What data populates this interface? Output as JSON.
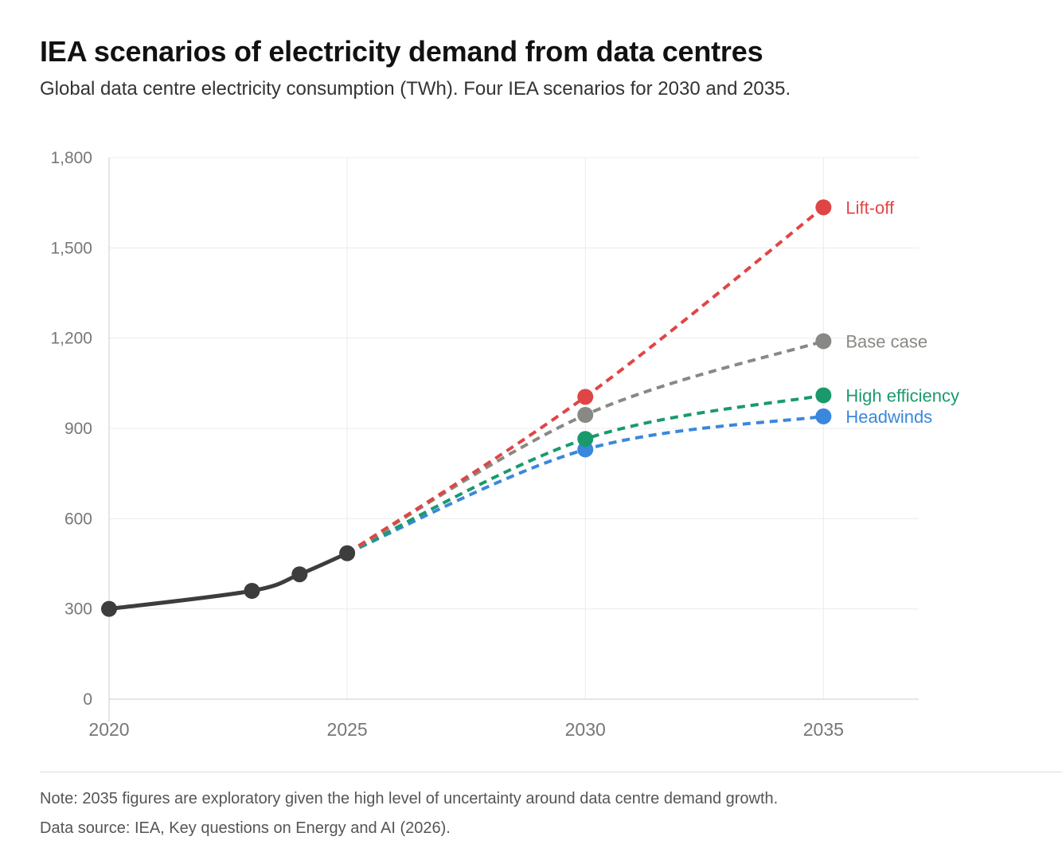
{
  "title": "IEA scenarios of electricity demand from data centres",
  "subtitle": "Global data centre electricity consumption (TWh). Four IEA scenarios for 2030 and 2035.",
  "note": "Note: 2035 figures are exploratory given the high level of uncertainty around data centre demand growth.",
  "source": "Data source: IEA, Key questions on Energy and AI (2026).",
  "chart_data": {
    "type": "line",
    "title": "IEA scenarios of electricity demand from data centres",
    "subtitle": "Global data centre electricity consumption (TWh). Four IEA scenarios for 2030 and 2035.",
    "xlabel": "",
    "ylabel": "",
    "xlim": [
      2020,
      2037
    ],
    "ylim": [
      0,
      1800
    ],
    "x_ticks": [
      2020,
      2025,
      2030,
      2035
    ],
    "x_tick_labels": [
      "2020",
      "2025",
      "2030",
      "2035"
    ],
    "y_ticks": [
      0,
      300,
      600,
      900,
      1200,
      1500,
      1800
    ],
    "y_tick_labels": [
      "0",
      "300",
      "600",
      "900",
      "1,200",
      "1,500",
      "1,800"
    ],
    "grid": true,
    "historical": {
      "x": [
        2020,
        2023,
        2024,
        2025
      ],
      "y": [
        300,
        360,
        415,
        485
      ],
      "color": "#3d3d3d"
    },
    "series": [
      {
        "name": "Lift-off",
        "x": [
          2025,
          2030,
          2035
        ],
        "y": [
          485,
          1005,
          1635
        ],
        "color": "#e04545"
      },
      {
        "name": "Base case",
        "x": [
          2025,
          2030,
          2035
        ],
        "y": [
          485,
          945,
          1190
        ],
        "color": "#888884"
      },
      {
        "name": "High efficiency",
        "x": [
          2025,
          2030,
          2035
        ],
        "y": [
          485,
          865,
          1010
        ],
        "color": "#1a9a6c"
      },
      {
        "name": "Headwinds",
        "x": [
          2025,
          2030,
          2035
        ],
        "y": [
          485,
          830,
          940
        ],
        "color": "#3a87dd"
      }
    ],
    "legend": "direct labels at line ends"
  }
}
